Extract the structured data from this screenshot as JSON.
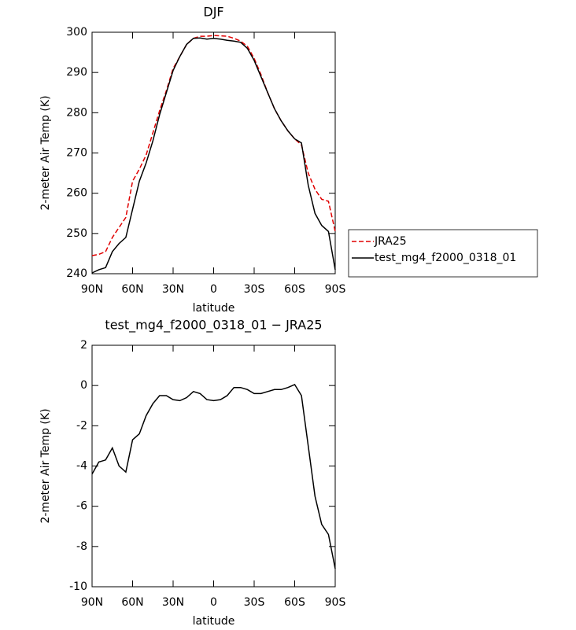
{
  "chart_data": [
    {
      "type": "line",
      "title": "DJF",
      "xlabel": "latitude",
      "ylabel": "2-meter Air Temp (K)",
      "x": [
        90,
        85,
        80,
        75,
        70,
        65,
        60,
        55,
        50,
        45,
        40,
        35,
        30,
        25,
        20,
        15,
        10,
        5,
        0,
        -5,
        -10,
        -15,
        -20,
        -25,
        -30,
        -35,
        -40,
        -45,
        -50,
        -55,
        -60,
        -65,
        -70,
        -75,
        -80,
        -85,
        -90
      ],
      "series": [
        {
          "name": "JRA25",
          "color": "#e00000",
          "dash": true,
          "values": [
            244.5,
            244.8,
            245.5,
            249,
            251.5,
            254,
            263,
            266,
            269.5,
            275,
            280.5,
            285.5,
            291,
            294,
            297,
            298.5,
            299,
            299,
            299.2,
            299.1,
            299,
            298.5,
            297.8,
            296.5,
            293.5,
            289.5,
            285,
            281,
            278,
            275.5,
            273.5,
            272,
            265,
            261,
            258.5,
            258,
            250.5
          ]
        },
        {
          "name": "test_mg4_f2000_0318_01",
          "color": "#000000",
          "dash": false,
          "values": [
            240.2,
            241,
            241.5,
            245.5,
            247.5,
            249,
            256,
            263,
            267.5,
            273,
            279.5,
            285,
            290.5,
            294,
            297,
            298.5,
            298.6,
            298.3,
            298.5,
            298.3,
            298,
            297.8,
            297.5,
            296,
            293,
            289,
            285,
            281,
            278,
            275.5,
            273.5,
            272.5,
            262,
            255,
            252,
            250.5,
            241
          ]
        }
      ],
      "xlim": [
        90,
        -90
      ],
      "xticks": [
        {
          "value": 90,
          "label": "90N"
        },
        {
          "value": 60,
          "label": "60N"
        },
        {
          "value": 30,
          "label": "30N"
        },
        0,
        {
          "value": -30,
          "label": "30S"
        },
        {
          "value": -60,
          "label": "60S"
        },
        {
          "value": -90,
          "label": "90S"
        }
      ],
      "ylim": [
        240,
        300
      ],
      "yticks": [
        240,
        250,
        260,
        270,
        280,
        290,
        300
      ],
      "legend": "right"
    },
    {
      "type": "line",
      "title": "test_mg4_f2000_0318_01 − JRA25",
      "xlabel": "latitude",
      "ylabel": "2-meter Air Temp (K)",
      "x": [
        90,
        85,
        80,
        75,
        70,
        65,
        60,
        55,
        50,
        45,
        40,
        35,
        30,
        25,
        20,
        15,
        10,
        5,
        0,
        -5,
        -10,
        -15,
        -20,
        -25,
        -30,
        -35,
        -40,
        -45,
        -50,
        -55,
        -60,
        -65,
        -70,
        -75,
        -80,
        -85,
        -90
      ],
      "series": [
        {
          "color": "#000000",
          "dash": false,
          "values": [
            -4.4,
            -3.8,
            -3.7,
            -3.1,
            -4.0,
            -4.3,
            -2.7,
            -2.4,
            -1.5,
            -0.9,
            -0.5,
            -0.5,
            -0.7,
            -0.75,
            -0.6,
            -0.3,
            -0.4,
            -0.7,
            -0.75,
            -0.7,
            -0.5,
            -0.1,
            -0.1,
            -0.2,
            -0.4,
            -0.4,
            -0.3,
            -0.2,
            -0.2,
            -0.1,
            0.05,
            -0.5,
            -3.0,
            -5.5,
            -6.9,
            -7.4,
            -9.1
          ]
        }
      ],
      "xlim": [
        90,
        -90
      ],
      "xticks": [
        {
          "value": 90,
          "label": "90N"
        },
        {
          "value": 60,
          "label": "60N"
        },
        {
          "value": 30,
          "label": "30N"
        },
        0,
        {
          "value": -30,
          "label": "30S"
        },
        {
          "value": -60,
          "label": "60S"
        },
        {
          "value": -90,
          "label": "90S"
        }
      ],
      "ylim": [
        -10,
        2
      ],
      "yticks": [
        -10,
        -8,
        -6,
        -4,
        -2,
        0,
        2
      ]
    }
  ]
}
